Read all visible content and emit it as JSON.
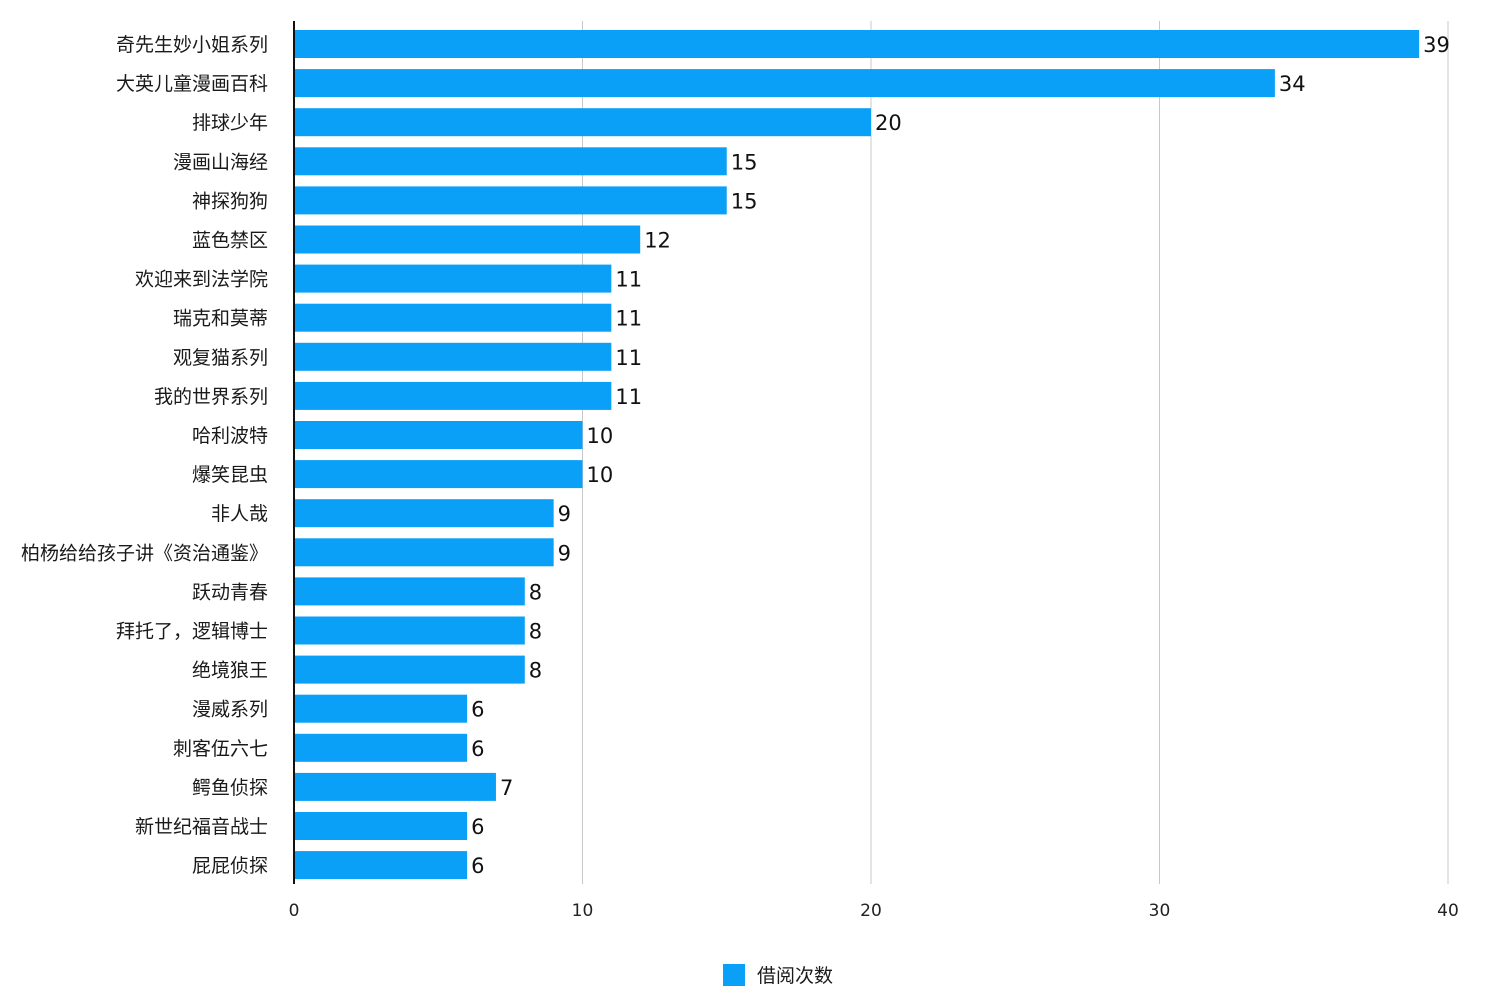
{
  "chart_data": {
    "type": "bar",
    "orientation": "horizontal",
    "title": "",
    "xlabel": "",
    "ylabel": "",
    "categories": [
      "奇先生妙小姐系列",
      "大英儿童漫画百科",
      "排球少年",
      "漫画山海经",
      "神探狗狗",
      "蓝色禁区",
      "欢迎来到法学院",
      "瑞克和莫蒂",
      "观复猫系列",
      "我的世界系列",
      "哈利波特",
      "爆笑昆虫",
      "非人哉",
      "柏杨给给孩子讲《资治通鉴》",
      "跃动青春",
      "拜托了，逻辑博士",
      "绝境狼王",
      "漫威系列",
      "刺客伍六七",
      "鳄鱼侦探",
      "新世纪福音战士",
      "屁屁侦探"
    ],
    "series": [
      {
        "name": "借阅次数",
        "color": "#0aa0f8",
        "values": [
          39,
          34,
          20,
          15,
          15,
          12,
          11,
          11,
          11,
          11,
          10,
          10,
          9,
          9,
          8,
          8,
          8,
          6,
          6,
          7,
          6,
          6
        ]
      }
    ],
    "xlim": [
      0,
      40
    ],
    "xticks": [
      0,
      10,
      20,
      30,
      40
    ],
    "grid": "vertical",
    "legend": "bottom-center",
    "data_labels": true
  }
}
